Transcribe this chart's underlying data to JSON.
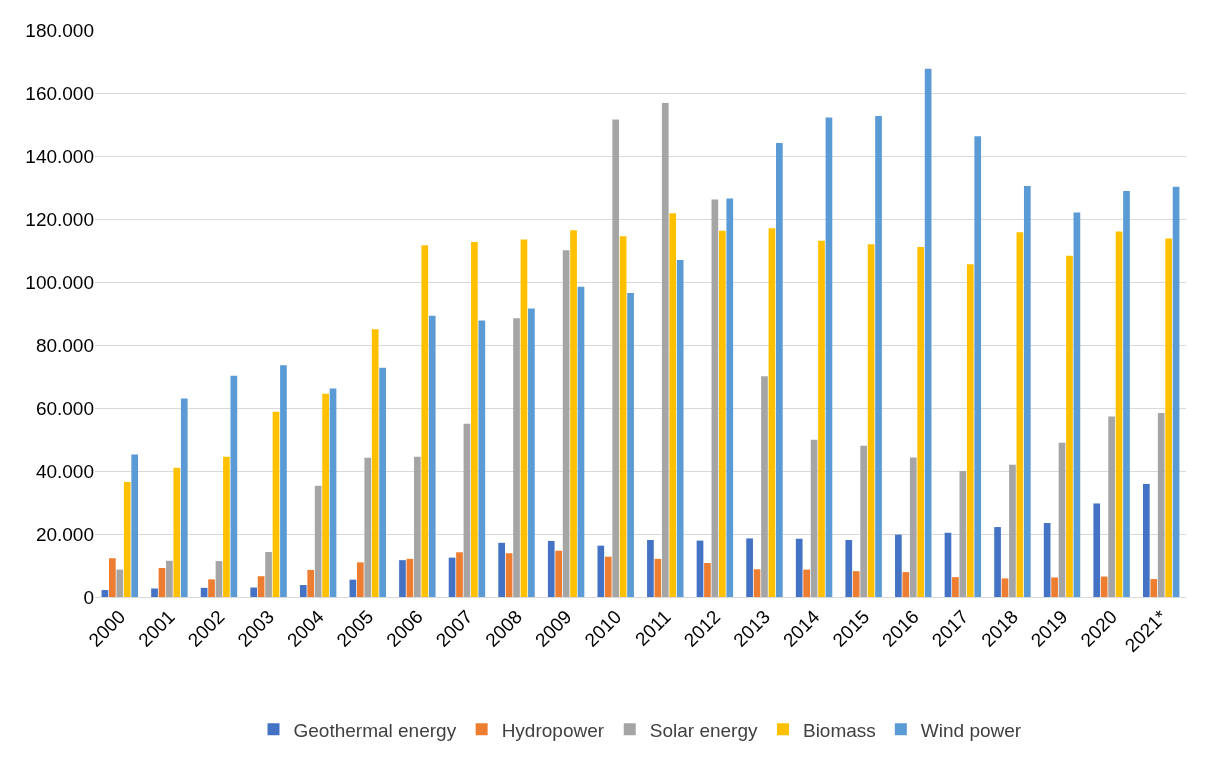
{
  "chart_data": {
    "type": "bar",
    "categories": [
      "2000",
      "2001",
      "2002",
      "2003",
      "2004",
      "2005",
      "2006",
      "2007",
      "2008",
      "2009",
      "2010",
      "2011",
      "2012",
      "2013",
      "2014",
      "2015",
      "2016",
      "2017",
      "2018",
      "2019",
      "2020",
      "2021*"
    ],
    "series": [
      {
        "name": "Geothermal energy",
        "color": "#4472c4",
        "values": [
          2200,
          2700,
          2900,
          3000,
          3800,
          5500,
          11700,
          12500,
          17200,
          17800,
          16300,
          18100,
          17900,
          18600,
          18500,
          18100,
          19800,
          20400,
          22200,
          23500,
          29700,
          35900
        ]
      },
      {
        "name": "Hydropower",
        "color": "#ed7d31",
        "values": [
          12300,
          9200,
          5600,
          6600,
          8600,
          11000,
          12100,
          14200,
          13900,
          14700,
          12800,
          12100,
          10800,
          8800,
          8700,
          8200,
          7900,
          6300,
          5900,
          6200,
          6500,
          5700
        ]
      },
      {
        "name": "Solar energy",
        "color": "#a5a5a5",
        "values": [
          8700,
          11500,
          11400,
          14300,
          35300,
          44200,
          44500,
          55000,
          88500,
          110100,
          151600,
          156800,
          126200,
          70100,
          49900,
          48000,
          44300,
          40000,
          42000,
          49000,
          57300,
          58400
        ]
      },
      {
        "name": "Biomass",
        "color": "#ffc000",
        "values": [
          36500,
          41000,
          44500,
          58800,
          64500,
          85000,
          111700,
          112700,
          113500,
          116400,
          114500,
          121800,
          116300,
          117100,
          113100,
          112000,
          111100,
          105600,
          115800,
          108300,
          116000,
          113800
        ]
      },
      {
        "name": "Wind power",
        "color": "#5b9bd5",
        "values": [
          45200,
          63000,
          70200,
          73600,
          66200,
          72800,
          89300,
          87800,
          91600,
          98500,
          96500,
          107000,
          126500,
          144100,
          152200,
          152700,
          167700,
          146300,
          130500,
          122100,
          128900,
          130200
        ]
      }
    ],
    "ylim": [
      0,
      180000
    ],
    "yticks": [
      0,
      {
        "value": 20000,
        "label": "20.000"
      },
      {
        "value": 40000,
        "label": "40.000"
      },
      {
        "value": 60000,
        "label": "60.000"
      },
      {
        "value": 80000,
        "label": "80.000"
      },
      {
        "value": 100000,
        "label": "100.000"
      },
      {
        "value": 120000,
        "label": "120.000"
      },
      {
        "value": 140000,
        "label": "140.000"
      },
      {
        "value": 160000,
        "label": "160.000"
      },
      {
        "value": 180000,
        "label": "180.000"
      }
    ],
    "grid": "y",
    "legend": "bottom"
  }
}
